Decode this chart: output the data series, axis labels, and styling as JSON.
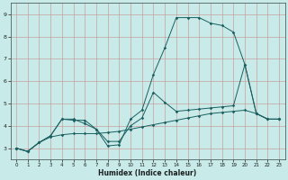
{
  "xlabel": "Humidex (Indice chaleur)",
  "bg_color": "#c8eae8",
  "grid_color_major": "#c8a8a8",
  "line_color": "#1a6060",
  "xlim": [
    -0.5,
    23.5
  ],
  "ylim": [
    2.5,
    9.5
  ],
  "xticks": [
    0,
    1,
    2,
    3,
    4,
    5,
    6,
    7,
    8,
    9,
    10,
    11,
    12,
    13,
    14,
    15,
    16,
    17,
    18,
    19,
    20,
    21,
    22,
    23
  ],
  "yticks": [
    3,
    4,
    5,
    6,
    7,
    8,
    9
  ],
  "line1_x": [
    0,
    1,
    2,
    3,
    4,
    5,
    6,
    7,
    8,
    9,
    10,
    11,
    12,
    13,
    14,
    15,
    16,
    17,
    18,
    19,
    20,
    21,
    22,
    23
  ],
  "line1_y": [
    3.0,
    2.85,
    3.25,
    3.55,
    4.3,
    4.25,
    4.25,
    3.85,
    3.1,
    3.15,
    4.3,
    4.7,
    6.3,
    7.5,
    8.85,
    8.85,
    8.85,
    8.6,
    8.5,
    8.2,
    6.75,
    4.55,
    4.3,
    4.3
  ],
  "line2_x": [
    0,
    1,
    2,
    3,
    4,
    5,
    6,
    7,
    8,
    9,
    10,
    11,
    12,
    13,
    14,
    15,
    16,
    17,
    18,
    19,
    20,
    21,
    22,
    23
  ],
  "line2_y": [
    3.0,
    2.85,
    3.25,
    3.55,
    4.3,
    4.3,
    4.1,
    3.85,
    3.3,
    3.3,
    4.0,
    4.35,
    5.5,
    5.05,
    4.65,
    4.7,
    4.75,
    4.8,
    4.85,
    4.9,
    6.75,
    4.55,
    4.3,
    4.3
  ],
  "line3_x": [
    0,
    1,
    2,
    3,
    4,
    5,
    6,
    7,
    8,
    9,
    10,
    11,
    12,
    13,
    14,
    15,
    16,
    17,
    18,
    19,
    20,
    21,
    22,
    23
  ],
  "line3_y": [
    3.0,
    2.85,
    3.25,
    3.5,
    3.6,
    3.65,
    3.65,
    3.65,
    3.7,
    3.75,
    3.85,
    3.95,
    4.05,
    4.15,
    4.25,
    4.35,
    4.45,
    4.55,
    4.6,
    4.65,
    4.7,
    4.55,
    4.3,
    4.3
  ]
}
